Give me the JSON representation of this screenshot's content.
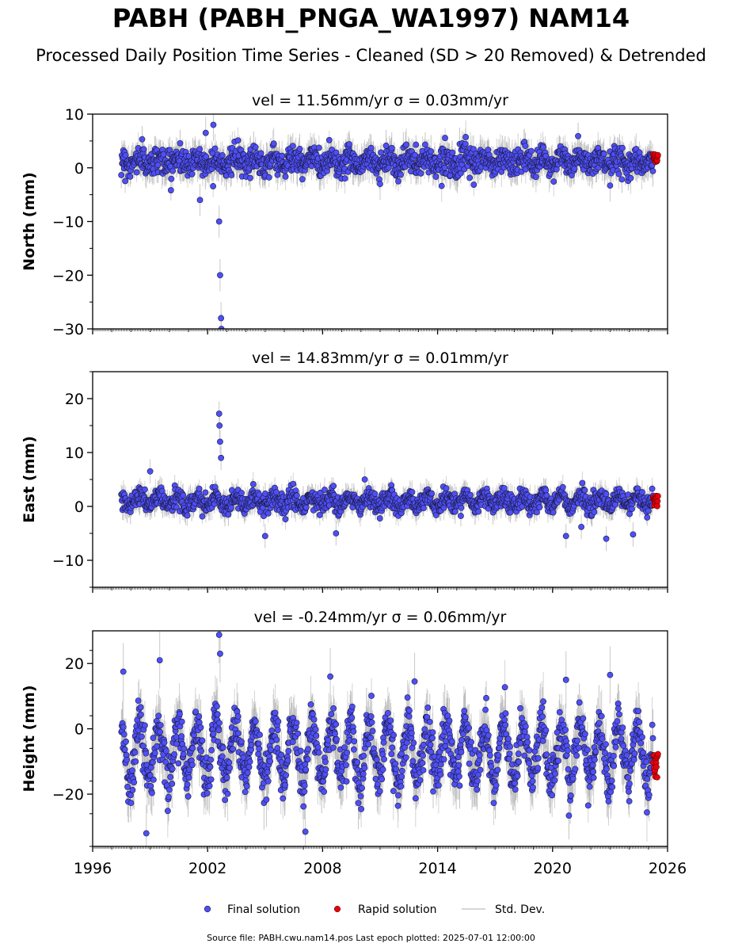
{
  "header": {
    "title": "PABH (PABH_PNGA_WA1997) NAM14",
    "subtitle": "Processed Daily Position Time Series - Cleaned (SD > 20 Removed) & Detrended"
  },
  "footer": {
    "text": "Source file: PABH.cwu.nam14.pos  Last epoch plotted: 2025-07-01 12:00:00"
  },
  "legend": {
    "final": "Final solution",
    "rapid": "Rapid solution",
    "std": "Std. Dev."
  },
  "colors": {
    "final": "#4f4ff5",
    "rapid": "#e8000b",
    "std": "#c8c8c8",
    "dense": "#555555"
  },
  "chart_data": [
    {
      "type": "scatter",
      "component": "north",
      "title": "vel = 11.56mm/yr   σ = 0.03mm/yr",
      "ylabel": "North (mm)",
      "xlim": [
        1996,
        2026
      ],
      "ylim": [
        -30,
        10
      ],
      "xticks": [
        "1996",
        "2002",
        "2008",
        "2014",
        "2020",
        "2026"
      ],
      "yticks": [
        10,
        0,
        -10,
        -20,
        -30
      ],
      "data_span": [
        1997.5,
        2025.5
      ],
      "baseline": 1.2,
      "seasonal_amplitude": 0.8,
      "scatter_sd": 1.2,
      "events": [
        {
          "x": 2001.9,
          "y": 6.5
        },
        {
          "x": 2002.3,
          "y": 8.0
        },
        {
          "x": 2002.6,
          "y": -10
        },
        {
          "x": 2002.65,
          "y": -20
        },
        {
          "x": 2002.7,
          "y": -28
        },
        {
          "x": 2002.72,
          "y": -30
        },
        {
          "x": 2001.6,
          "y": -6
        },
        {
          "x": 2011.0,
          "y": -3
        },
        {
          "x": 2023.0,
          "y": -3.3
        }
      ],
      "rapid_points": {
        "x_from": 2025.25,
        "x_to": 2025.5,
        "y_from": 1.0,
        "y_to": 2.8
      }
    },
    {
      "type": "scatter",
      "component": "east",
      "title": "vel = 14.83mm/yr   σ = 0.01mm/yr",
      "ylabel": "East (mm)",
      "xlim": [
        1996,
        2026
      ],
      "ylim": [
        -15,
        25
      ],
      "xticks": [
        "1996",
        "2002",
        "2008",
        "2014",
        "2020",
        "2026"
      ],
      "yticks": [
        20,
        10,
        0,
        -10
      ],
      "data_span": [
        1997.5,
        2025.5
      ],
      "baseline": 1.0,
      "seasonal_amplitude": 0.9,
      "scatter_sd": 0.9,
      "events": [
        {
          "x": 2002.6,
          "y": 17.2
        },
        {
          "x": 2002.62,
          "y": 15
        },
        {
          "x": 2002.65,
          "y": 12
        },
        {
          "x": 2002.7,
          "y": 9
        },
        {
          "x": 1999.0,
          "y": 6.5
        },
        {
          "x": 2005.0,
          "y": -5.5
        },
        {
          "x": 2008.7,
          "y": -5.0
        },
        {
          "x": 2010.2,
          "y": 5.0
        },
        {
          "x": 2020.7,
          "y": -5.5
        },
        {
          "x": 2022.8,
          "y": -6.0
        },
        {
          "x": 2024.2,
          "y": -5.2
        },
        {
          "x": 2021.5,
          "y": -3.8
        }
      ],
      "rapid_points": {
        "x_from": 2025.25,
        "x_to": 2025.5,
        "y_from": 0.0,
        "y_to": 2.0
      }
    },
    {
      "type": "scatter",
      "component": "height",
      "title": "vel = -0.24mm/yr   σ = 0.06mm/yr",
      "ylabel": "Height (mm)",
      "xlim": [
        1996,
        2026
      ],
      "ylim": [
        -36,
        30
      ],
      "xticks": [
        "1996",
        "2002",
        "2008",
        "2014",
        "2020",
        "2026"
      ],
      "yticks": [
        20,
        0,
        -20
      ],
      "data_span": [
        1997.5,
        2025.5
      ],
      "baseline": -7.0,
      "seasonal_amplitude": 8.5,
      "scatter_sd": 3.5,
      "events": [
        {
          "x": 1997.6,
          "y": 17.5
        },
        {
          "x": 1999.5,
          "y": 21
        },
        {
          "x": 2002.6,
          "y": 28.8
        },
        {
          "x": 2002.65,
          "y": 23
        },
        {
          "x": 1998.8,
          "y": -32
        },
        {
          "x": 2007.1,
          "y": -31.5
        },
        {
          "x": 2008.4,
          "y": 16
        },
        {
          "x": 2012.8,
          "y": 14.5
        },
        {
          "x": 2023.0,
          "y": 16.5
        },
        {
          "x": 2020.7,
          "y": 15
        }
      ],
      "rapid_points": {
        "x_from": 2025.25,
        "x_to": 2025.5,
        "y_from": -16,
        "y_to": -7.5
      }
    }
  ]
}
